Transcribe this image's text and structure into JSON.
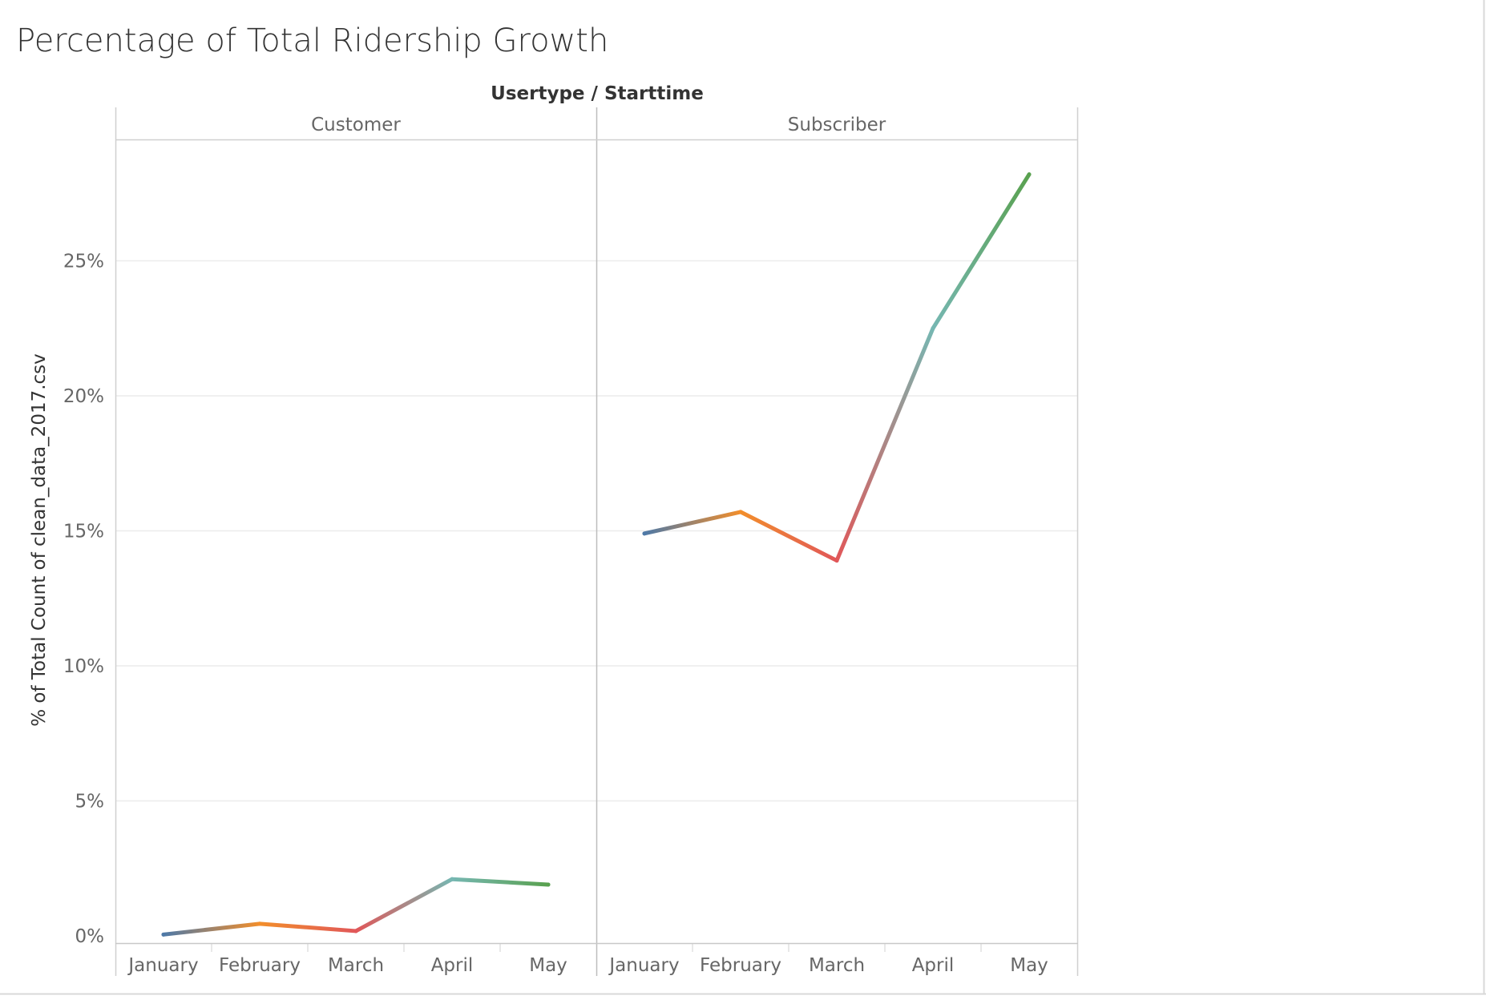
{
  "chart_data": {
    "type": "line",
    "title": "Percentage of Total Ridership Growth",
    "column_header": "Usertype / Starttime",
    "ylabel": "% of Total Count of clean_data_2017.csv",
    "xlabel": "",
    "ylim": [
      0,
      0.3
    ],
    "y_ticks": [
      0,
      0.05,
      0.1,
      0.15,
      0.2,
      0.25
    ],
    "y_tick_labels": [
      "0%",
      "5%",
      "10%",
      "15%",
      "20%",
      "25%"
    ],
    "categories": [
      "January",
      "February",
      "March",
      "April",
      "May"
    ],
    "gridlines": true,
    "legend": "none",
    "month_colors": [
      "#4e79a7",
      "#f28e2b",
      "#e15759",
      "#76b7b2",
      "#59a14f"
    ],
    "panes": [
      {
        "name": "Customer",
        "values": [
          0.0005,
          0.0045,
          0.0018,
          0.021,
          0.019
        ]
      },
      {
        "name": "Subscriber",
        "values": [
          0.149,
          0.157,
          0.139,
          0.225,
          0.282
        ]
      }
    ]
  }
}
